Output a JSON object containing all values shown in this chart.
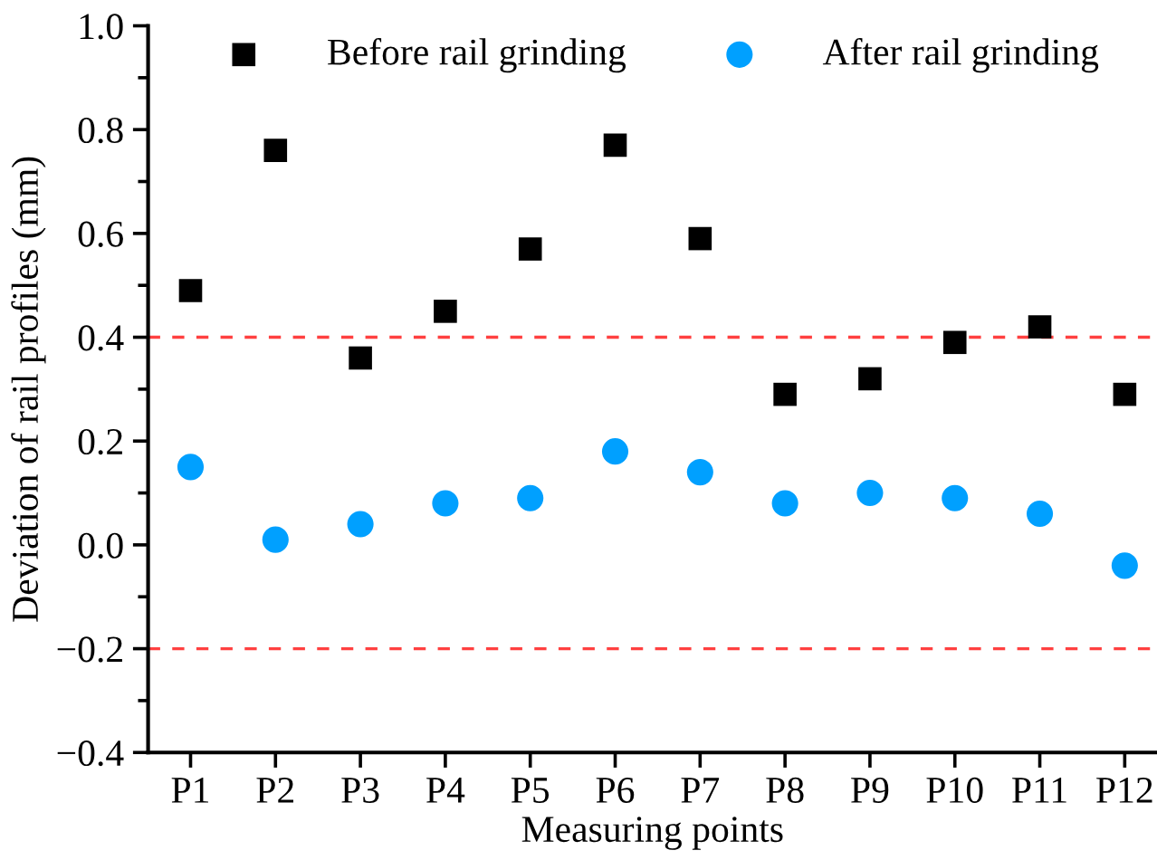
{
  "chart_data": {
    "type": "scatter",
    "xlabel": "Measuring points",
    "ylabel": "Deviation of rail profiles (mm)",
    "categories": [
      "P1",
      "P2",
      "P3",
      "P4",
      "P5",
      "P6",
      "P7",
      "P8",
      "P9",
      "P10",
      "P11",
      "P12"
    ],
    "series": [
      {
        "name": "Before rail grinding",
        "color": "#000000",
        "marker": "square",
        "values": [
          0.49,
          0.76,
          0.36,
          0.45,
          0.57,
          0.77,
          0.59,
          0.29,
          0.32,
          0.39,
          0.42,
          0.29
        ]
      },
      {
        "name": "After rail grinding",
        "color": "#00a0ff",
        "marker": "circle",
        "values": [
          0.15,
          0.01,
          0.04,
          0.08,
          0.09,
          0.18,
          0.14,
          0.08,
          0.1,
          0.09,
          0.06,
          -0.04
        ]
      }
    ],
    "ylim": [
      -0.4,
      1.0
    ],
    "yticks": [
      {
        "value": -0.4,
        "label": "−0.4"
      },
      {
        "value": -0.2,
        "label": "−0.2"
      },
      "0.0",
      0.2,
      0.4,
      0.6,
      0.8,
      "1.0"
    ],
    "ref_lines": [
      {
        "axis": "y",
        "value": 0.4,
        "color": "#ff4040",
        "line_style": "dashed"
      },
      {
        "axis": "y",
        "value": -0.2,
        "color": "#ff4040",
        "line_style": "dashed"
      }
    ],
    "legend": "top",
    "grid": false
  }
}
